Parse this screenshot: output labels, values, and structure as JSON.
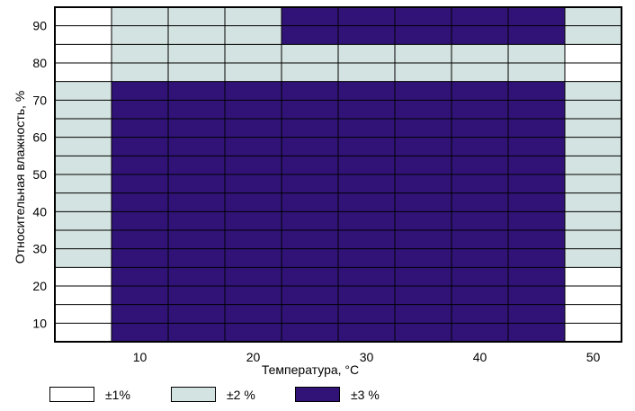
{
  "chart_data": {
    "type": "heatmap",
    "xlabel": "Температура, °С",
    "ylabel": "Относительная влажность, %",
    "x_ticks": [
      "10",
      "20",
      "30",
      "40",
      "50"
    ],
    "y_ticks": [
      "90",
      "80",
      "70",
      "60",
      "50",
      "40",
      "30",
      "20",
      "10"
    ],
    "xlim": [
      0,
      50
    ],
    "ylim": [
      5,
      95
    ],
    "grid": true,
    "legend_position": "bottom",
    "categories": [
      {
        "key": "a",
        "label": "±1%",
        "color": "#ffffff"
      },
      {
        "key": "b",
        "label": "±2 %",
        "color": "#d3e3e1"
      },
      {
        "key": "c",
        "label": "±3 %",
        "color": "#311377"
      }
    ],
    "regions": [
      {
        "x": [
          0,
          5
        ],
        "y": [
          75,
          95
        ],
        "category": "a"
      },
      {
        "x": [
          0,
          5
        ],
        "y": [
          25,
          75
        ],
        "category": "b"
      },
      {
        "x": [
          0,
          5
        ],
        "y": [
          5,
          25
        ],
        "category": "a"
      },
      {
        "x": [
          5,
          20
        ],
        "y": [
          75,
          95
        ],
        "category": "b"
      },
      {
        "x": [
          5,
          20
        ],
        "y": [
          5,
          75
        ],
        "category": "c"
      },
      {
        "x": [
          20,
          45
        ],
        "y": [
          85,
          95
        ],
        "category": "c"
      },
      {
        "x": [
          20,
          45
        ],
        "y": [
          75,
          85
        ],
        "category": "b"
      },
      {
        "x": [
          20,
          45
        ],
        "y": [
          5,
          75
        ],
        "category": "c"
      },
      {
        "x": [
          45,
          50
        ],
        "y": [
          85,
          95
        ],
        "category": "b"
      },
      {
        "x": [
          45,
          50
        ],
        "y": [
          75,
          85
        ],
        "category": "a"
      },
      {
        "x": [
          45,
          50
        ],
        "y": [
          25,
          75
        ],
        "category": "b"
      },
      {
        "x": [
          45,
          50
        ],
        "y": [
          5,
          25
        ],
        "category": "a"
      }
    ]
  }
}
